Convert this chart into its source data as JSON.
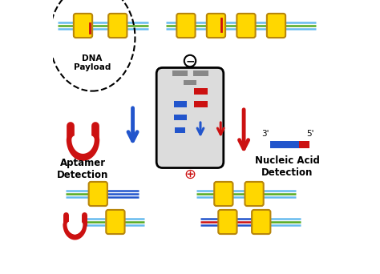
{
  "bg_color": "#ffffff",
  "yellow": "#FFD700",
  "yellow_edge": "#B8860B",
  "blue": "#2255CC",
  "red": "#CC1111",
  "gray_band": "#888888",
  "green": "#55AA22",
  "light_blue": "#66BBEE",
  "gel_bg": "#DCDCDC",
  "dna_payload_label": "DNA\nPayload",
  "aptamer_label": "Aptamer\nDetection",
  "nucleic_acid_label": "Nucleic Acid\nDetection",
  "three_prime": "3'",
  "five_prime": "5'",
  "fig_w": 4.74,
  "fig_h": 3.42,
  "dpi": 100
}
